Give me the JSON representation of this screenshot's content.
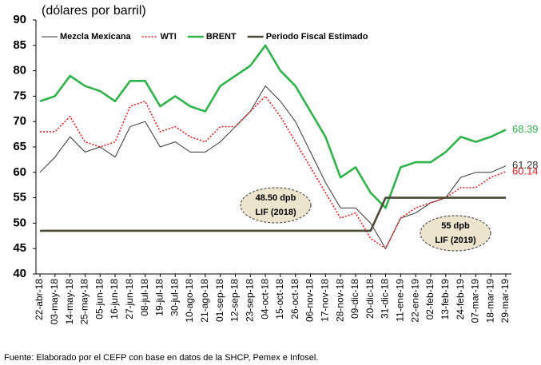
{
  "chart_data": {
    "type": "line",
    "title": "(dólares por barril)",
    "source": "Fuente: Elaborado por el CEFP con base en datos de la SHCP, Pemex e Infosel.",
    "categories": [
      "22-abr-18",
      "03-may-18",
      "14-may-18",
      "25-may-18",
      "05-jun-18",
      "16-jun-18",
      "27-jun-18",
      "08-jul-18",
      "19-jul-18",
      "30-jul-18",
      "10-ago-18",
      "21-ago-18",
      "01-sep-18",
      "12-sep-18",
      "23-sep-18",
      "04-oct-18",
      "15-oct-18",
      "26-oct-18",
      "06-nov-18",
      "17-nov-18",
      "28-nov-18",
      "09-dic-18",
      "20-dic-18",
      "31-dic-18",
      "11-ene-19",
      "22-ene-19",
      "02-feb-19",
      "13-feb-19",
      "24-feb-19",
      "07-mar-19",
      "18-mar-19",
      "29-mar-19"
    ],
    "series": [
      {
        "name": "Mezcla Mexicana",
        "color": "#333333",
        "style": "thin",
        "end_label": true,
        "values": [
          60,
          63,
          67,
          64,
          65,
          63,
          69,
          70,
          65,
          66,
          64,
          64,
          66,
          69,
          72,
          77,
          74,
          70,
          64,
          58,
          53,
          53,
          50,
          45,
          51,
          52,
          54,
          55,
          59,
          60,
          60,
          61.28
        ]
      },
      {
        "name": "WTI",
        "color": "#e02020",
        "style": "dotted",
        "end_label": true,
        "values": [
          68,
          68,
          71,
          66,
          65,
          66,
          73,
          74,
          68,
          69,
          67,
          66,
          69,
          69,
          72,
          75,
          71,
          66,
          61,
          56,
          51,
          52,
          47,
          45,
          51,
          53,
          54,
          55,
          57,
          57,
          59,
          60.14
        ]
      },
      {
        "name": "BRENT",
        "color": "#2fb34a",
        "style": "bold",
        "end_label": true,
        "values": [
          74,
          75,
          79,
          77,
          76,
          74,
          78,
          78,
          73,
          75,
          73,
          72,
          77,
          79,
          81,
          85,
          80,
          77,
          72,
          67,
          59,
          61,
          56,
          53,
          61,
          62,
          62,
          64,
          67,
          66,
          67,
          68.39
        ]
      },
      {
        "name": "Periodo Fiscal Estimado",
        "color": "#4a4a35",
        "style": "bold",
        "end_label": false,
        "values": [
          48.5,
          48.5,
          48.5,
          48.5,
          48.5,
          48.5,
          48.5,
          48.5,
          48.5,
          48.5,
          48.5,
          48.5,
          48.5,
          48.5,
          48.5,
          48.5,
          48.5,
          48.5,
          48.5,
          48.5,
          48.5,
          48.5,
          48.5,
          55,
          55,
          55,
          55,
          55,
          55,
          55,
          55,
          55
        ]
      }
    ],
    "annotations": [
      {
        "lines": [
          "48.50 dpb",
          "LIF (2018)"
        ]
      },
      {
        "lines": [
          "55 dpb",
          "LIF (2019)"
        ]
      }
    ],
    "ylim": [
      40,
      90
    ],
    "yticks": [
      40,
      45,
      50,
      55,
      60,
      65,
      70,
      75,
      80,
      85,
      90
    ],
    "grid": false
  }
}
